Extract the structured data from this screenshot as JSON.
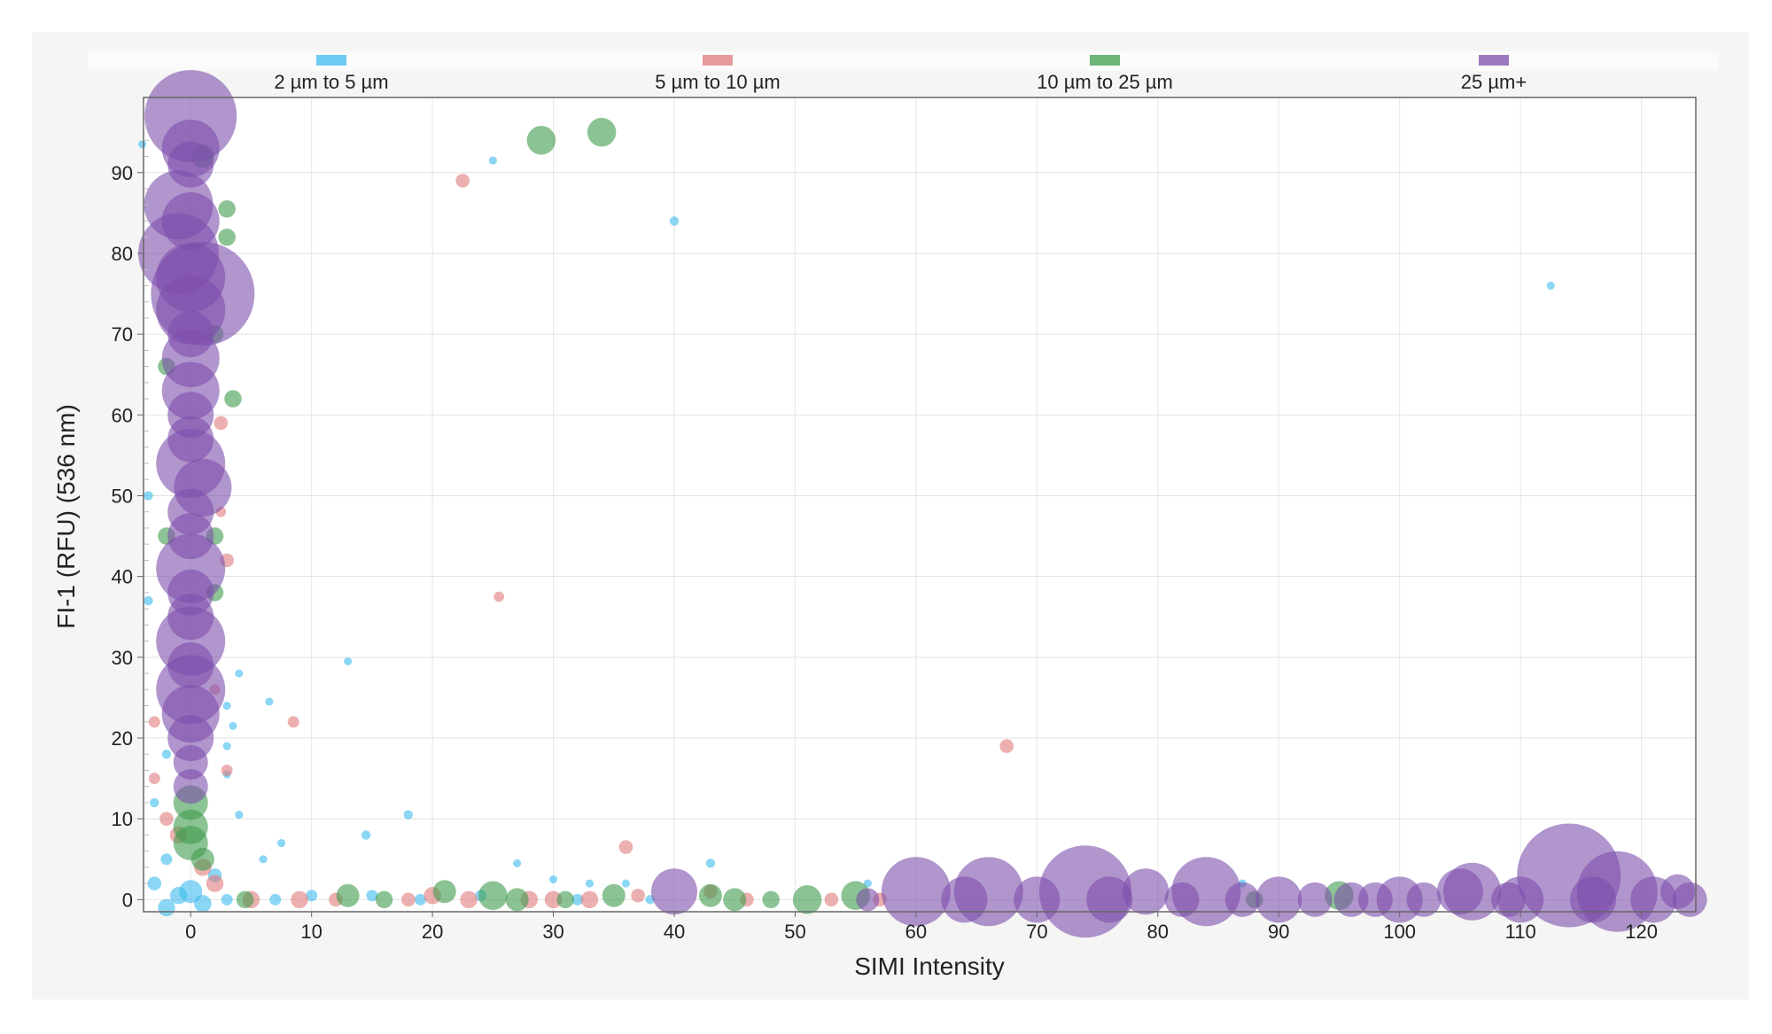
{
  "chart_data": {
    "type": "scatter",
    "title": "",
    "xlabel": "SIMI Intensity",
    "ylabel": "FI-1 (RFU) (536 nm)",
    "xlim": [
      -3.9,
      124.5
    ],
    "ylim": [
      -1.5,
      99.3
    ],
    "xticks": [
      0,
      10,
      20,
      30,
      40,
      50,
      60,
      70,
      80,
      90,
      100,
      110,
      120
    ],
    "yticks": [
      0,
      10,
      20,
      30,
      40,
      50,
      60,
      70,
      80,
      90
    ],
    "grid": true,
    "legend_position": "top",
    "point_format": [
      "x",
      "y",
      "size"
    ],
    "series": [
      {
        "name": "2 µm to 5 µm",
        "color": "#3dbbee",
        "points": [
          [
            25,
            91.5,
            0.7
          ],
          [
            40,
            84,
            0.8
          ],
          [
            112.5,
            76,
            0.7
          ],
          [
            13,
            29.5,
            0.7
          ],
          [
            6.5,
            24.5,
            0.7
          ],
          [
            4,
            28,
            0.7
          ],
          [
            18,
            10.5,
            0.8
          ],
          [
            14.5,
            8,
            0.8
          ],
          [
            7.5,
            7,
            0.7
          ],
          [
            6,
            5,
            0.7
          ],
          [
            27,
            4.5,
            0.7
          ],
          [
            43,
            4.5,
            0.8
          ],
          [
            30,
            2.5,
            0.7
          ],
          [
            33,
            2,
            0.7
          ],
          [
            36,
            2,
            0.7
          ],
          [
            -3.5,
            50,
            0.8
          ],
          [
            -3.5,
            37,
            0.8
          ],
          [
            -4,
            93.5,
            0.7
          ],
          [
            4,
            10.5,
            0.7
          ],
          [
            3,
            15.5,
            0.7
          ],
          [
            3,
            19,
            0.7
          ],
          [
            3.5,
            21.5,
            0.7
          ],
          [
            3,
            24,
            0.7
          ],
          [
            -2,
            18,
            0.8
          ],
          [
            -3,
            12,
            0.8
          ],
          [
            -2,
            5,
            1
          ],
          [
            -3,
            2,
            1.2
          ],
          [
            -1,
            0.5,
            1.5
          ],
          [
            1,
            -0.5,
            1.5
          ],
          [
            3,
            0,
            1
          ],
          [
            7,
            0,
            1
          ],
          [
            10,
            0.5,
            1
          ],
          [
            15,
            0.5,
            1
          ],
          [
            19,
            0,
            1
          ],
          [
            24,
            0.5,
            1
          ],
          [
            32,
            0,
            1
          ],
          [
            38,
            0,
            0.8
          ],
          [
            56,
            2,
            0.7
          ],
          [
            87,
            2,
            0.7
          ],
          [
            0,
            1,
            2
          ],
          [
            -2,
            -1,
            1.5
          ],
          [
            2,
            3,
            1.2
          ]
        ]
      },
      {
        "name": "5 µm to 10 µm",
        "color": "#e07b7b",
        "points": [
          [
            22.5,
            89,
            1.2
          ],
          [
            25.5,
            37.5,
            0.9
          ],
          [
            8.5,
            22,
            1
          ],
          [
            67.5,
            19,
            1.2
          ],
          [
            36,
            6.5,
            1.2
          ],
          [
            2.5,
            59,
            1.2
          ],
          [
            3,
            42,
            1.2
          ],
          [
            2.5,
            48,
            0.9
          ],
          [
            -3,
            22,
            1
          ],
          [
            -3,
            15,
            1
          ],
          [
            -2,
            10,
            1.2
          ],
          [
            -1,
            8,
            1.5
          ],
          [
            1,
            4,
            1.5
          ],
          [
            2,
            2,
            1.5
          ],
          [
            5,
            0,
            1.5
          ],
          [
            9,
            0,
            1.5
          ],
          [
            12,
            0,
            1.2
          ],
          [
            18,
            0,
            1.2
          ],
          [
            20,
            0.5,
            1.5
          ],
          [
            23,
            0,
            1.5
          ],
          [
            28,
            0,
            1.5
          ],
          [
            30,
            0,
            1.5
          ],
          [
            33,
            0,
            1.5
          ],
          [
            37,
            0.5,
            1.2
          ],
          [
            43,
            1,
            1.2
          ],
          [
            46,
            0,
            1.2
          ],
          [
            53,
            0,
            1.2
          ],
          [
            57,
            0,
            1.2
          ],
          [
            3,
            16,
            1
          ],
          [
            2,
            26,
            0.9
          ]
        ]
      },
      {
        "name": "10 µm to 25 µm",
        "color": "#3f9b4c",
        "points": [
          [
            29,
            94,
            2.5
          ],
          [
            34,
            95,
            2.5
          ],
          [
            1,
            92,
            2
          ],
          [
            3,
            85.5,
            1.5
          ],
          [
            3,
            82,
            1.5
          ],
          [
            3.5,
            62,
            1.5
          ],
          [
            2,
            70,
            1.5
          ],
          [
            -2,
            66,
            1.5
          ],
          [
            2,
            45,
            1.5
          ],
          [
            2,
            38,
            1.5
          ],
          [
            0,
            12,
            3
          ],
          [
            0,
            9,
            3
          ],
          [
            0,
            7,
            3
          ],
          [
            1,
            5,
            2
          ],
          [
            13,
            0.5,
            2
          ],
          [
            16,
            0,
            1.5
          ],
          [
            21,
            1,
            2
          ],
          [
            25,
            0.5,
            2.5
          ],
          [
            27,
            0,
            2
          ],
          [
            31,
            0,
            1.5
          ],
          [
            35,
            0.5,
            2
          ],
          [
            43,
            0.5,
            2
          ],
          [
            45,
            0,
            2
          ],
          [
            48,
            0,
            1.5
          ],
          [
            51,
            0,
            2.5
          ],
          [
            55,
            0.5,
            2.5
          ],
          [
            88,
            0,
            1.5
          ],
          [
            95,
            0.5,
            2.5
          ],
          [
            4.5,
            0,
            1.5
          ],
          [
            -2,
            45,
            1.5
          ]
        ]
      },
      {
        "name": "25 µm+",
        "color": "#7d4fac",
        "points": [
          [
            0,
            97,
            8
          ],
          [
            0,
            93,
            5
          ],
          [
            0,
            91,
            4
          ],
          [
            -1,
            86,
            6
          ],
          [
            0,
            84,
            5
          ],
          [
            -1,
            80,
            7
          ],
          [
            0,
            77,
            6
          ],
          [
            1,
            75,
            9
          ],
          [
            0,
            73,
            6
          ],
          [
            0,
            70,
            4
          ],
          [
            0,
            67,
            5
          ],
          [
            0,
            63,
            5
          ],
          [
            0,
            60,
            4
          ],
          [
            0,
            57,
            4
          ],
          [
            0,
            54,
            6
          ],
          [
            1,
            51,
            5
          ],
          [
            0,
            48,
            4
          ],
          [
            0,
            45,
            4
          ],
          [
            0,
            41,
            6
          ],
          [
            0,
            38,
            4
          ],
          [
            0,
            35,
            4
          ],
          [
            0,
            32,
            6
          ],
          [
            0,
            29,
            4
          ],
          [
            0,
            26,
            6
          ],
          [
            0,
            23,
            5
          ],
          [
            0,
            20,
            4
          ],
          [
            0,
            17,
            3
          ],
          [
            0,
            14,
            3
          ],
          [
            40,
            1,
            4
          ],
          [
            60,
            1,
            6
          ],
          [
            66,
            1,
            6
          ],
          [
            70,
            0,
            4
          ],
          [
            74,
            1,
            8
          ],
          [
            79,
            1,
            4
          ],
          [
            84,
            1,
            6
          ],
          [
            87,
            0,
            3
          ],
          [
            90,
            0,
            4
          ],
          [
            93,
            0,
            3
          ],
          [
            98,
            0,
            3
          ],
          [
            100,
            0,
            4
          ],
          [
            105,
            1,
            4
          ],
          [
            106,
            1,
            5
          ],
          [
            110,
            0,
            4
          ],
          [
            114,
            3,
            9
          ],
          [
            118,
            1,
            7
          ],
          [
            121,
            0,
            4
          ],
          [
            123,
            1,
            3
          ],
          [
            64,
            0,
            4
          ],
          [
            76,
            0,
            4
          ],
          [
            82,
            0,
            3
          ],
          [
            109,
            0,
            3
          ],
          [
            116,
            0,
            4
          ],
          [
            102,
            0,
            3
          ],
          [
            124,
            0,
            3
          ],
          [
            56,
            0,
            2
          ],
          [
            96,
            0,
            3
          ]
        ]
      }
    ]
  }
}
